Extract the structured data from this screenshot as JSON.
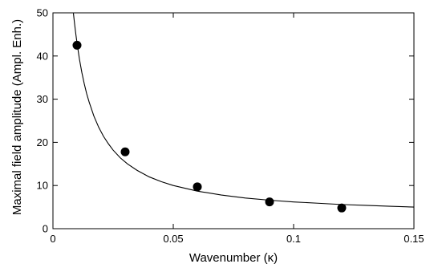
{
  "chart_data": {
    "type": "scatter",
    "title": "",
    "xlabel": "Wavenumber  (κ)",
    "ylabel": "Maximal field amplitude (Ampl. Enh.)",
    "xlim": [
      0,
      0.15
    ],
    "ylim": [
      0,
      50
    ],
    "xticks": [
      0,
      0.05,
      0.1,
      0.15
    ],
    "xtick_labels": [
      "0",
      "0.05",
      "0.1",
      "0.15"
    ],
    "yticks": [
      0,
      10,
      20,
      30,
      40,
      50
    ],
    "ytick_labels": [
      "0",
      "10",
      "20",
      "30",
      "40",
      "50"
    ],
    "grid": false,
    "series": [
      {
        "kind": "points",
        "x": [
          0.01,
          0.03,
          0.06,
          0.09,
          0.12
        ],
        "y": [
          42.5,
          17.8,
          9.7,
          6.2,
          4.8
        ]
      },
      {
        "kind": "fit-curve",
        "x": [
          0.0085,
          0.009,
          0.0095,
          0.01,
          0.011,
          0.012,
          0.013,
          0.014,
          0.015,
          0.017,
          0.019,
          0.021,
          0.023,
          0.025,
          0.028,
          0.031,
          0.035,
          0.04,
          0.045,
          0.05,
          0.06,
          0.07,
          0.08,
          0.09,
          0.1,
          0.11,
          0.12,
          0.13,
          0.14,
          0.15
        ],
        "y": [
          49.9,
          47.4,
          45.1,
          43.0,
          39.3,
          36.2,
          33.6,
          31.3,
          29.4,
          26.1,
          23.5,
          21.4,
          19.7,
          18.2,
          16.4,
          15.0,
          13.5,
          12.0,
          10.9,
          10.0,
          8.7,
          7.8,
          7.1,
          6.6,
          6.2,
          5.9,
          5.6,
          5.4,
          5.2,
          5.0
        ]
      }
    ],
    "colors": {
      "points": "#000000",
      "curve": "#000000",
      "axes": "#000000"
    }
  }
}
